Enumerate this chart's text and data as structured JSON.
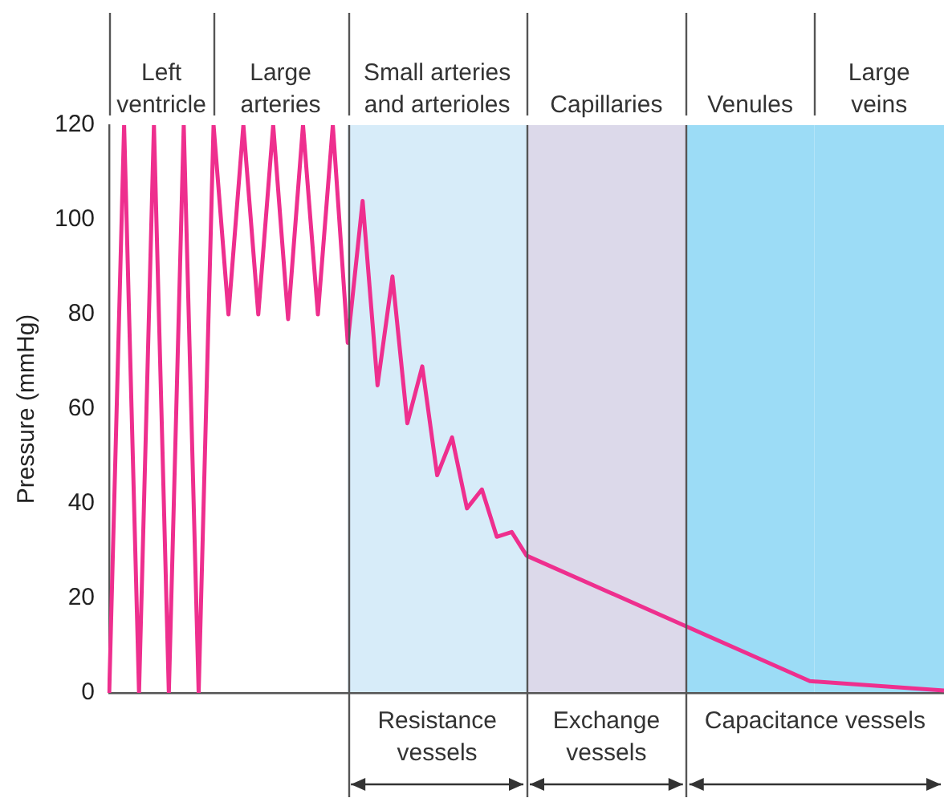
{
  "chart_data": {
    "type": "line",
    "ylabel": "Pressure (mmHg)",
    "ylim": [
      0,
      120
    ],
    "yticks": [
      0,
      20,
      40,
      60,
      80,
      100,
      120
    ],
    "tick_labels": "y",
    "grid": false,
    "legend": false,
    "marker": "none",
    "line_style": "solid",
    "categories": [
      null,
      null,
      null,
      null,
      null,
      null,
      null,
      null,
      null,
      null,
      null,
      null,
      null,
      null,
      null,
      null,
      null,
      null,
      null,
      null,
      null,
      null,
      null,
      null,
      null,
      null,
      null,
      null,
      null,
      null,
      null,
      null,
      null,
      null,
      null,
      null,
      null,
      null,
      null,
      null,
      null,
      null,
      null,
      null,
      null,
      null,
      null,
      null,
      null,
      null,
      null,
      null,
      null,
      null,
      null,
      null,
      null
    ],
    "series": [
      {
        "color": "#ee2f8e",
        "values": [
          0,
          120,
          0,
          120,
          0,
          120,
          0,
          120,
          80,
          120,
          80,
          120,
          79,
          120,
          80,
          120,
          74,
          104,
          65,
          88,
          57,
          69,
          46,
          54,
          39,
          43,
          33,
          34,
          29,
          null,
          null,
          null,
          null,
          null,
          null,
          null,
          null,
          null,
          null,
          null,
          null,
          null,
          null,
          null,
          null,
          null,
          null,
          2.5,
          null,
          null,
          null,
          null,
          null,
          null,
          null,
          null,
          0.5
        ]
      }
    ],
    "annotations": [
      "Left ventricle",
      "Large arteries",
      "Small arteries and arterioles",
      "Capillaries",
      "Venules",
      "Large veins",
      "Resistance vessels",
      "Exchange vessels",
      "Capacitance vessels"
    ]
  }
}
